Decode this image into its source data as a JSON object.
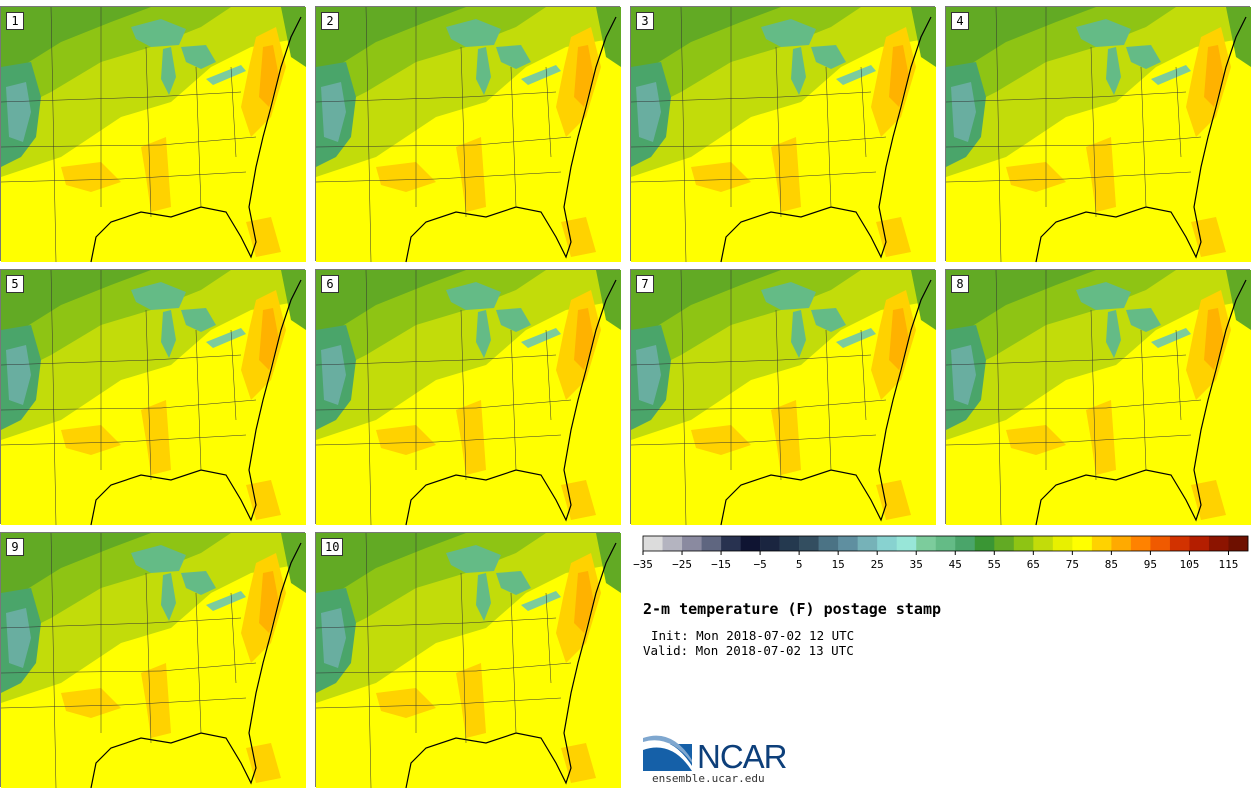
{
  "map": {
    "product": "2-m temperature (F) postage stamp",
    "init": "Init: Mon 2018-07-02 12 UTC",
    "valid": "Valid: Mon 2018-07-02 13 UTC",
    "members": [
      "1",
      "2",
      "3",
      "4",
      "5",
      "6",
      "7",
      "8",
      "9",
      "10"
    ],
    "region": "Eastern United States"
  },
  "colorbar": {
    "ticks": [
      "−35",
      "−25",
      "−15",
      "−5",
      "5",
      "15",
      "25",
      "35",
      "45",
      "55",
      "65",
      "75",
      "85",
      "95",
      "105",
      "115"
    ],
    "colors": [
      "#dcdcdc",
      "#b4b4c0",
      "#8a8aa0",
      "#5f6680",
      "#283250",
      "#0f1432",
      "#1a2540",
      "#24394f",
      "#334e60",
      "#4b7385",
      "#5f8fa0",
      "#76b2b8",
      "#88d2d0",
      "#98e6d8",
      "#7ccc9c",
      "#64bb86",
      "#4aa56a",
      "#3a9634",
      "#62aa24",
      "#8ec414",
      "#c2dc0a",
      "#e8f000",
      "#ffff00",
      "#ffd200",
      "#ffaa00",
      "#ff8200",
      "#f05a00",
      "#d23200",
      "#b41e00",
      "#8c1400",
      "#6e1000"
    ]
  },
  "logo": {
    "name": "NCAR",
    "url": "ensemble.ucar.edu"
  }
}
